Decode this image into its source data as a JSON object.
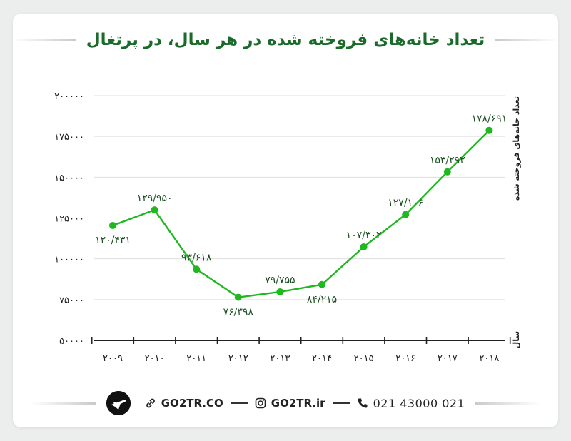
{
  "chart_data": {
    "type": "line",
    "title": "تعداد خانه‌های فروخته شده در هر سال، در پرتغال",
    "xlabel": "سال",
    "ylabel": "تعداد خانه‌های فروخته شده",
    "categories": [
      "۲۰۰۹",
      "۲۰۱۰",
      "۲۰۱۱",
      "۲۰۱۲",
      "۲۰۱۳",
      "۲۰۱۴",
      "۲۰۱۵",
      "۲۰۱۶",
      "۲۰۱۷",
      "۲۰۱۸"
    ],
    "values": [
      120431,
      129950,
      93618,
      76398,
      79755,
      84215,
      107302,
      127106,
      153292,
      178691
    ],
    "data_labels": [
      "۱۲۰/۴۳۱",
      "۱۲۹/۹۵۰",
      "۹۳/۶۱۸",
      "۷۶/۳۹۸",
      "۷۹/۷۵۵",
      "۸۴/۲۱۵",
      "۱۰۷/۳۰۲",
      "۱۲۷/۱۰۶",
      "۱۵۳/۲۹۲",
      "۱۷۸/۶۹۱"
    ],
    "label_position": [
      "below",
      "above",
      "above",
      "below",
      "above",
      "below",
      "above",
      "above",
      "above",
      "above"
    ],
    "yticks": [
      50000,
      75000,
      100000,
      125000,
      150000,
      175000,
      200000
    ],
    "ytick_labels": [
      "۵۰۰۰۰",
      "۷۵۰۰۰",
      "۱۰۰۰۰۰",
      "۱۲۵۰۰۰",
      "۱۵۰۰۰۰",
      "۱۷۵۰۰۰",
      "۲۰۰۰۰۰"
    ],
    "ylim": [
      50000,
      200000
    ],
    "grid": "horizontal",
    "line_color": "#1fb81f",
    "legend": "none"
  },
  "footer": {
    "website": "GO2TR.CO",
    "instagram": "GO2TR.ir",
    "phone": "021 43000 021",
    "icons": [
      "logo-plane-icon",
      "link-icon",
      "instagram-icon",
      "phone-icon"
    ]
  },
  "colors": {
    "title": "#1a6a2a",
    "background": "#eceeee",
    "card": "#ffffff"
  }
}
